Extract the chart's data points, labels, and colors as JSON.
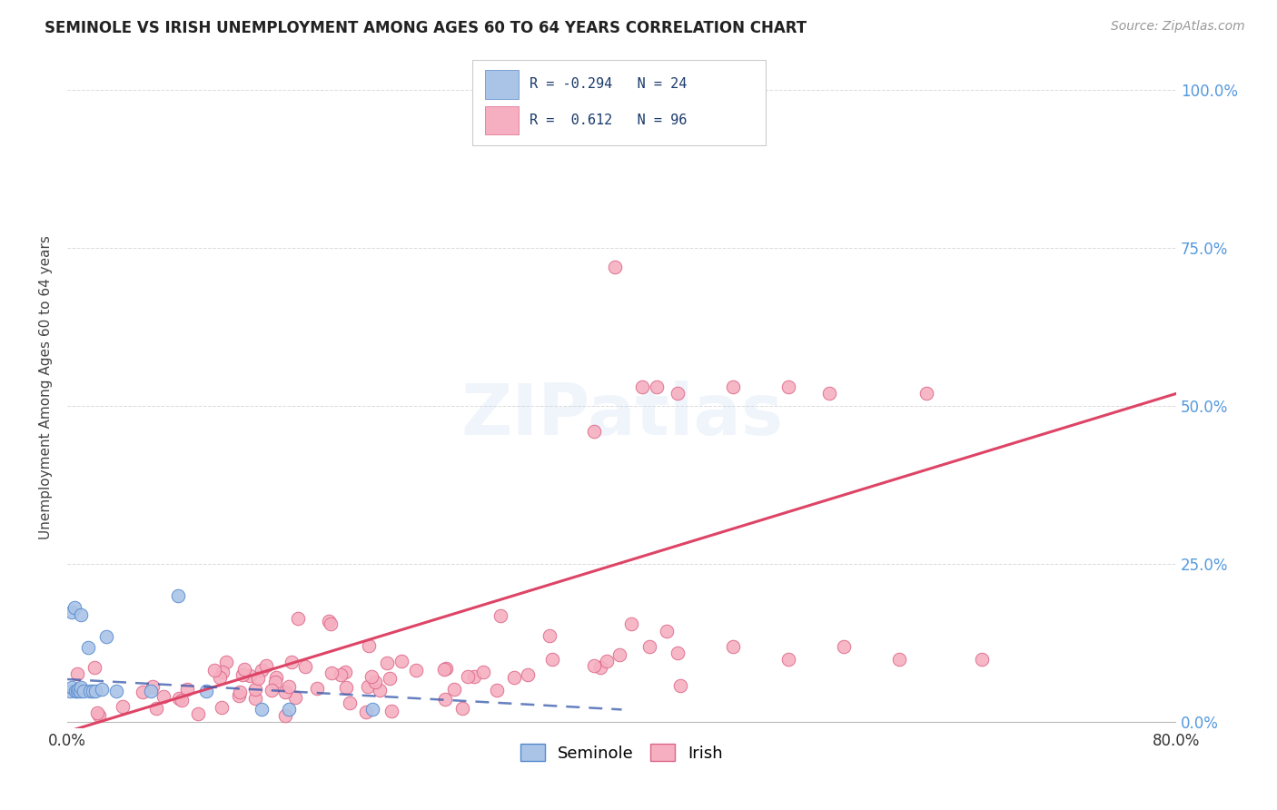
{
  "title": "SEMINOLE VS IRISH UNEMPLOYMENT AMONG AGES 60 TO 64 YEARS CORRELATION CHART",
  "source": "Source: ZipAtlas.com",
  "ylabel": "Unemployment Among Ages 60 to 64 years",
  "xmin": 0.0,
  "xmax": 0.8,
  "ymin": -0.01,
  "ymax": 1.07,
  "seminole_R": -0.294,
  "seminole_N": 24,
  "irish_R": 0.612,
  "irish_N": 96,
  "seminole_color": "#aac4e8",
  "irish_color": "#f5afc0",
  "seminole_edge": "#5588cc",
  "irish_edge": "#dd6688",
  "trend_seminole_color": "#3355aa",
  "trend_irish_color": "#dd4466",
  "background_color": "#ffffff",
  "grid_color": "#cccccc",
  "seminole_x": [
    0.002,
    0.003,
    0.003,
    0.005,
    0.006,
    0.007,
    0.008,
    0.009,
    0.01,
    0.01,
    0.012,
    0.015,
    0.016,
    0.018,
    0.02,
    0.025,
    0.028,
    0.035,
    0.06,
    0.08,
    0.1,
    0.14,
    0.16,
    0.22
  ],
  "seminole_y": [
    0.05,
    0.175,
    0.055,
    0.182,
    0.05,
    0.05,
    0.052,
    0.05,
    0.055,
    0.17,
    0.05,
    0.118,
    0.05,
    0.05,
    0.05,
    0.052,
    0.135,
    0.05,
    0.05,
    0.2,
    0.05,
    0.02,
    0.02,
    0.02
  ],
  "irish_trend_x0": 0.0,
  "irish_trend_y0": -0.015,
  "irish_trend_x1": 0.8,
  "irish_trend_y1": 0.52,
  "sem_trend_x0": 0.0,
  "sem_trend_y0": 0.068,
  "sem_trend_x1": 0.4,
  "sem_trend_y1": 0.02
}
